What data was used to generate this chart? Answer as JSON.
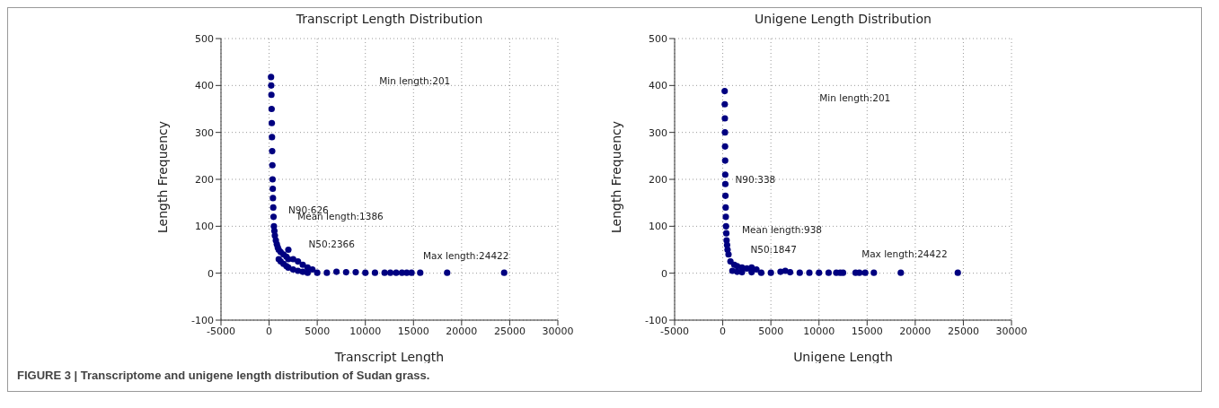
{
  "chart_data": [
    {
      "type": "scatter",
      "title": "Transcript Length Distribution",
      "xlabel": "Transcript Length",
      "ylabel": "Length Frequency",
      "xlim": [
        -5000,
        30000
      ],
      "xticks": [
        -5000,
        0,
        5000,
        10000,
        15000,
        20000,
        25000,
        30000
      ],
      "ylim": [
        -100,
        500
      ],
      "yticks": [
        -100,
        0,
        100,
        200,
        300,
        400,
        500
      ],
      "grid": true,
      "marker": "circle",
      "color": "#000080",
      "x": [
        201,
        220,
        240,
        260,
        280,
        300,
        320,
        340,
        360,
        380,
        400,
        430,
        460,
        500,
        550,
        600,
        700,
        800,
        900,
        1000,
        1000,
        1200,
        1200,
        1500,
        1500,
        1800,
        1800,
        2000,
        2000,
        2000,
        2500,
        2500,
        3000,
        3000,
        3500,
        3500,
        4000,
        4000,
        4500,
        5000,
        6000,
        7000,
        8000,
        9000,
        10000,
        11000,
        12000,
        12600,
        13200,
        13800,
        14300,
        14800,
        15700,
        18500,
        24422
      ],
      "values": [
        418,
        400,
        380,
        350,
        320,
        290,
        260,
        230,
        200,
        180,
        160,
        140,
        120,
        100,
        90,
        80,
        70,
        62,
        55,
        50,
        30,
        45,
        25,
        40,
        20,
        35,
        15,
        50,
        30,
        12,
        30,
        8,
        25,
        5,
        18,
        3,
        12,
        1,
        8,
        1,
        1,
        3,
        2,
        2,
        1,
        1,
        1,
        1,
        1,
        1,
        1,
        1,
        1,
        1,
        1
      ],
      "annotations": [
        "Min length:201",
        "N90:626",
        "Mean length:1386",
        "N50:2366",
        "Max length:24422",
        "FIGURE 3 | Transcriptome and unigene length distribution of Sudan grass."
      ]
    },
    {
      "type": "scatter",
      "title": "Unigene Length Distribution",
      "xlabel": "Unigene Length",
      "ylabel": "Length Frequency",
      "xlim": [
        -5000,
        30000
      ],
      "xticks": [
        -5000,
        0,
        5000,
        10000,
        15000,
        20000,
        25000,
        30000
      ],
      "ylim": [
        -100,
        500
      ],
      "yticks": [
        -100,
        0,
        100,
        200,
        300,
        400,
        500
      ],
      "grid": true,
      "marker": "circle",
      "color": "#000080",
      "x": [
        201,
        210,
        220,
        230,
        240,
        250,
        260,
        270,
        280,
        300,
        320,
        340,
        370,
        400,
        450,
        500,
        600,
        800,
        1000,
        1200,
        1500,
        1500,
        2000,
        2000,
        2500,
        3000,
        3000,
        3500,
        4000,
        5000,
        6000,
        6500,
        7000,
        8000,
        9000,
        10000,
        11000,
        11800,
        12200,
        12500,
        13800,
        14200,
        14800,
        15700,
        18500,
        24422
      ],
      "values": [
        388,
        360,
        330,
        300,
        270,
        240,
        210,
        190,
        165,
        140,
        120,
        100,
        85,
        70,
        60,
        50,
        40,
        25,
        5,
        18,
        15,
        3,
        12,
        2,
        10,
        12,
        2,
        8,
        1,
        1,
        3,
        5,
        2,
        1,
        1,
        1,
        1,
        1,
        1,
        1,
        1,
        1,
        1,
        1,
        1,
        1
      ],
      "annotations": [
        "Min length:201",
        "N90:338",
        "Mean length:938",
        "N50:1847",
        "Max length:24422"
      ]
    }
  ]
}
